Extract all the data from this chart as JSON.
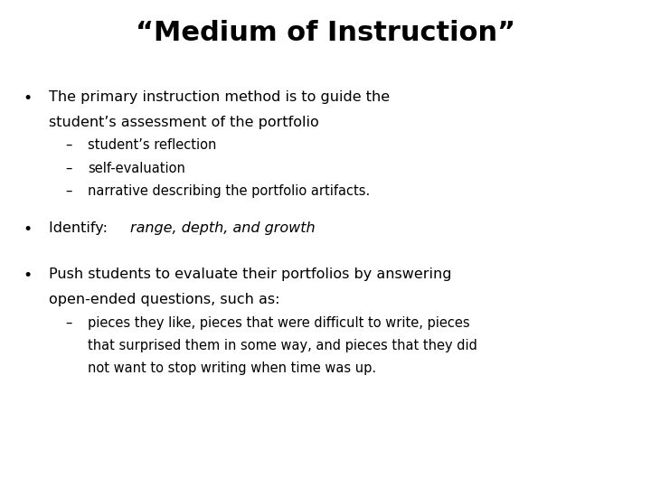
{
  "title": "“Medium of Instruction”",
  "background_color": "#ffffff",
  "text_color": "#000000",
  "title_fontsize": 22,
  "title_fontweight": "bold",
  "body_fontsize": 11.5,
  "sub_fontsize": 10.5,
  "bullet1_line1": "The primary instruction method is to guide the",
  "bullet1_line2": "student’s assessment of the portfolio",
  "sub1_1": "student’s reflection",
  "sub1_2": "self-evaluation",
  "sub1_3": "narrative describing the portfolio artifacts.",
  "bullet2_part1": "Identify: ",
  "bullet2_part2": "range, depth, and growth",
  "bullet3_line1": "Push students to evaluate their portfolios by answering",
  "bullet3_line2": "open-ended questions, such as:",
  "sub3_1_line1": "pieces they like, pieces that were difficult to write, pieces",
  "sub3_1_line2": "that surprised them in some way, and pieces that they did",
  "sub3_1_line3": "not want to stop writing when time was up."
}
